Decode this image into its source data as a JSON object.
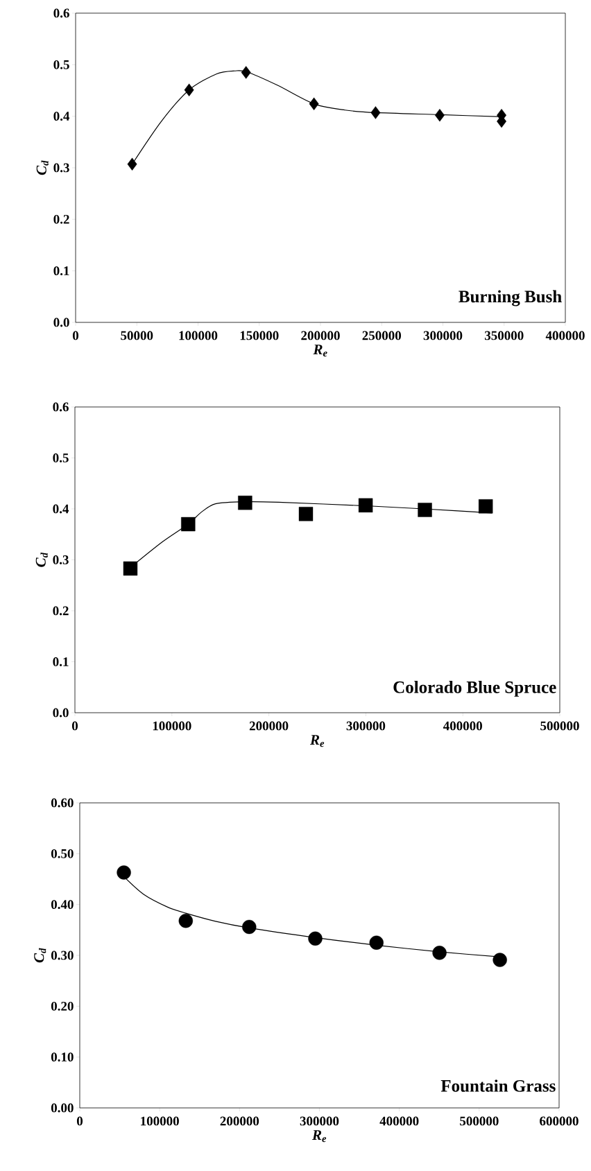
{
  "chart_data": [
    {
      "type": "scatter",
      "xlabel": "R$_{e}$",
      "ylabel": "C$_{d}$",
      "annotations": [
        "Burning Bush"
      ],
      "marker": "diamond",
      "legend": false,
      "xlim": [
        0,
        400000
      ],
      "xticks": [
        0,
        50000,
        100000,
        150000,
        200000,
        250000,
        300000,
        350000,
        400000
      ],
      "ylim": [
        0,
        0.6
      ],
      "yticks": [
        {
          "value": 0,
          "label": "0.0"
        },
        0.1,
        0.2,
        0.3,
        0.4,
        0.5,
        0.6
      ],
      "series": [
        {
          "color": "#000000",
          "x": [
            46200,
            92700,
            139200,
            194700,
            245000,
            297400,
            347900,
            347900
          ],
          "values": [
            0.307,
            0.451,
            0.485,
            0.424,
            0.407,
            0.402,
            0.402,
            0.39
          ]
        },
        {
          "type": "line",
          "color": "#000000",
          "marker": "none",
          "line_style": "solid",
          "x": [
            46200,
            70000,
            92700,
            115000,
            130000,
            140000,
            165000,
            194700,
            220000,
            245000,
            297400,
            347900
          ],
          "values": [
            0.307,
            0.39,
            0.451,
            0.482,
            0.488,
            0.486,
            0.46,
            0.424,
            0.412,
            0.407,
            0.403,
            0.399
          ]
        }
      ]
    },
    {
      "type": "scatter",
      "xlabel": "R$_{e}$",
      "ylabel": "C$_{d}$",
      "annotations": [
        "Colorado Blue Spruce"
      ],
      "marker": "square",
      "legend": false,
      "xlim": [
        0,
        500000
      ],
      "xticks": [
        0,
        100000,
        200000,
        300000,
        400000,
        500000
      ],
      "ylim": [
        0,
        0.6
      ],
      "yticks": [
        {
          "value": 0,
          "label": "0.0"
        },
        0.1,
        0.2,
        0.3,
        0.4,
        0.5,
        0.6
      ],
      "series": [
        {
          "color": "#000000",
          "x": [
            57200,
            116800,
            175500,
            238200,
            299800,
            360900,
            423600
          ],
          "values": [
            0.283,
            0.37,
            0.412,
            0.39,
            0.407,
            0.398,
            0.405
          ]
        },
        {
          "type": "line",
          "color": "#000000",
          "marker": "none",
          "line_style": "solid",
          "x": [
            57200,
            90000,
            116800,
            130000,
            145000,
            175000,
            210000,
            300000,
            360000,
            430000
          ],
          "values": [
            0.285,
            0.335,
            0.37,
            0.393,
            0.41,
            0.414,
            0.413,
            0.406,
            0.4,
            0.392
          ]
        }
      ]
    },
    {
      "type": "scatter",
      "xlabel": "R$_{e}$",
      "ylabel": "C$_{d}$",
      "annotations": [
        "Fountain Grass"
      ],
      "marker": "circle",
      "legend": false,
      "xlim": [
        0,
        600000
      ],
      "xticks": [
        0,
        100000,
        200000,
        300000,
        400000,
        500000,
        600000
      ],
      "ylim": [
        0,
        0.6
      ],
      "yticks": [
        {
          "value": 0,
          "label": "0.00"
        },
        {
          "value": 0.1,
          "label": "0.10"
        },
        {
          "value": 0.2,
          "label": "0.20"
        },
        {
          "value": 0.3,
          "label": "0.30"
        },
        {
          "value": 0.4,
          "label": "0.40"
        },
        {
          "value": 0.5,
          "label": "0.50"
        },
        {
          "value": 0.6,
          "label": "0.60"
        }
      ],
      "series": [
        {
          "color": "#000000",
          "x": [
            55200,
            132700,
            212100,
            294800,
            371400,
            450300,
            525900
          ],
          "values": [
            0.463,
            0.368,
            0.356,
            0.333,
            0.325,
            0.305,
            0.291
          ]
        },
        {
          "type": "line",
          "color": "#000000",
          "marker": "none",
          "line_style": "solid",
          "x": [
            55200,
            80000,
            110000,
            132700,
            170000,
            212100,
            294800,
            371400,
            450300,
            525900
          ],
          "values": [
            0.455,
            0.42,
            0.395,
            0.383,
            0.367,
            0.354,
            0.335,
            0.32,
            0.307,
            0.297
          ]
        }
      ]
    }
  ]
}
